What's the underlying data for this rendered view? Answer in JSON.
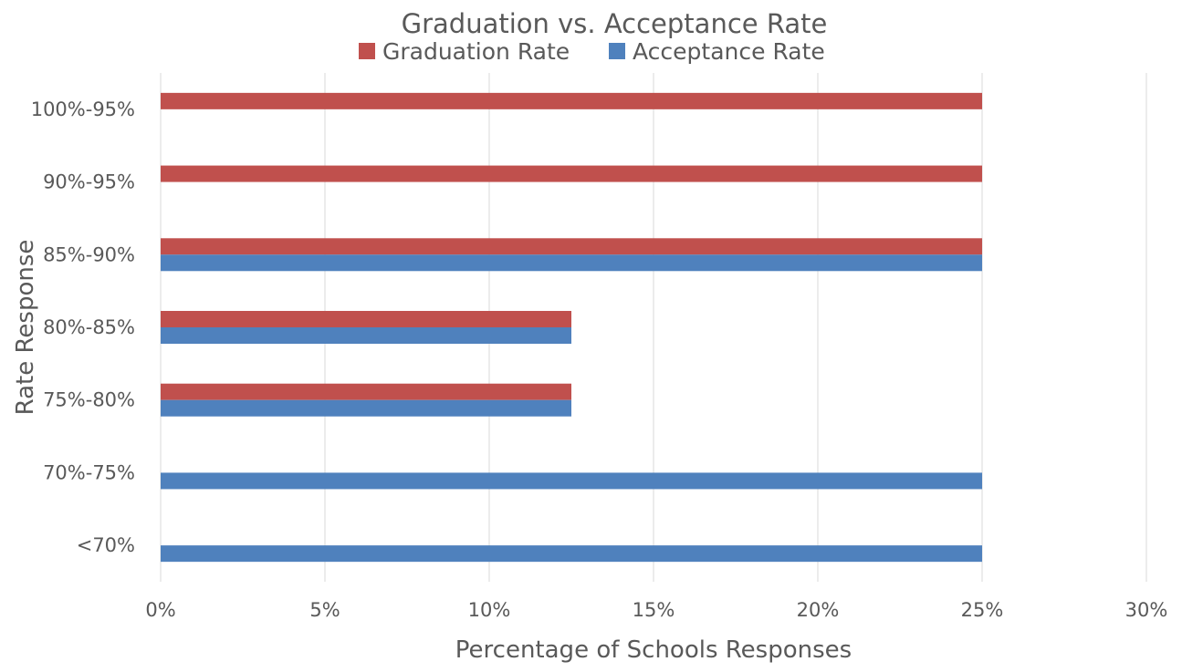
{
  "chart_data": {
    "type": "bar",
    "orientation": "horizontal",
    "title": "Graduation vs. Acceptance Rate",
    "xlabel": "Percentage of Schools Responses",
    "ylabel": "Rate Response",
    "categories": [
      "100%-95%",
      "90%-95%",
      "85%-90%",
      "80%-85%",
      "75%-80%",
      "70%-75%",
      "<70%"
    ],
    "series": [
      {
        "name": "Graduation Rate",
        "color": "#c0504d",
        "values": [
          0.25,
          0.25,
          0.25,
          0.125,
          0.125,
          0,
          0
        ]
      },
      {
        "name": "Acceptance Rate",
        "color": "#4f81bd",
        "values": [
          0,
          0,
          0.25,
          0.125,
          0.125,
          0.25,
          0.25
        ]
      }
    ],
    "xlim": [
      0,
      0.3
    ],
    "xticks": [
      0,
      0.05,
      0.1,
      0.15,
      0.2,
      0.25,
      0.3
    ],
    "xtick_labels": [
      "0%",
      "5%",
      "10%",
      "15%",
      "20%",
      "25%",
      "30%"
    ],
    "grid": true,
    "legend_position": "top"
  }
}
